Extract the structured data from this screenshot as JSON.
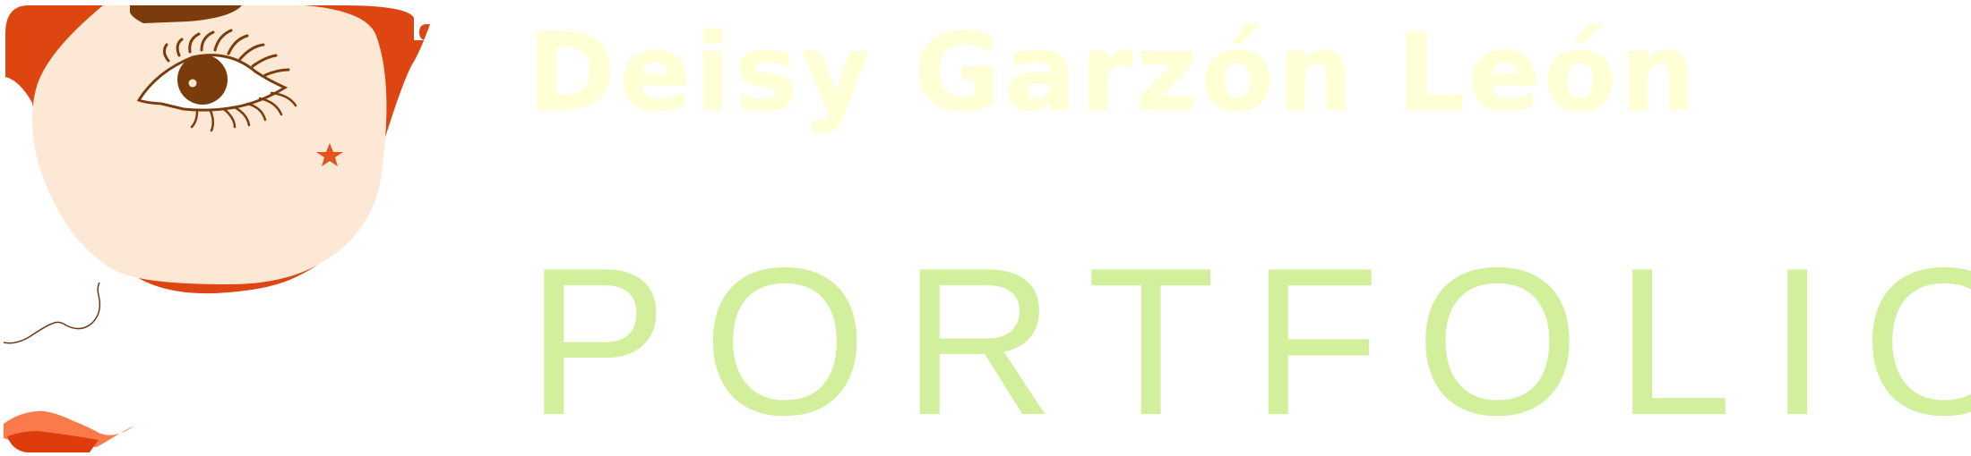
{
  "header": {
    "name": "Deisy Garzón León",
    "subtitle": "PORTFOLIO"
  },
  "colors": {
    "name_text": "#ffffd6",
    "subtitle_text": "#d2f09c",
    "frame_orange": "#dd4511",
    "skin": "#fde8d5",
    "eye_brown": "#7b3c0b",
    "star_orange": "#e2531e",
    "lips_light": "#fb7a4b",
    "lips_dark": "#df3c0e",
    "curl_brown": "#6b3a14"
  },
  "illustration": {
    "icons": [
      "face-frame-icon",
      "eye-icon",
      "star-icon",
      "curl-icon",
      "lips-icon"
    ]
  }
}
